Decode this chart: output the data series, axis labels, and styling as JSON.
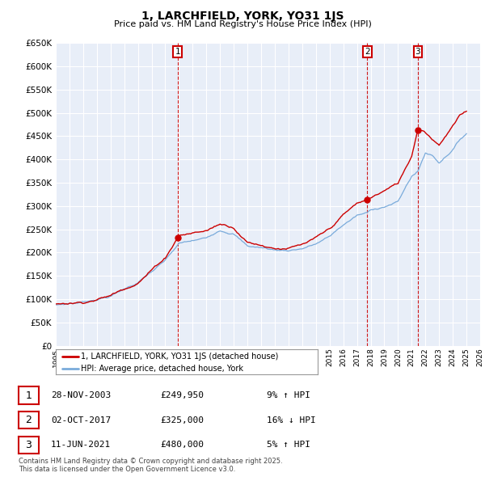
{
  "title": "1, LARCHFIELD, YORK, YO31 1JS",
  "subtitle": "Price paid vs. HM Land Registry's House Price Index (HPI)",
  "ytick_values": [
    0,
    50000,
    100000,
    150000,
    200000,
    250000,
    300000,
    350000,
    400000,
    450000,
    500000,
    550000,
    600000,
    650000
  ],
  "xmin": 1995,
  "xmax": 2026,
  "ymin": 0,
  "ymax": 650000,
  "sale_color": "#cc0000",
  "hpi_color": "#7aabdb",
  "sale_label": "1, LARCHFIELD, YORK, YO31 1JS (detached house)",
  "hpi_label": "HPI: Average price, detached house, York",
  "transactions": [
    {
      "num": 1,
      "date": "28-NOV-2003",
      "price": 249950,
      "pct": "9%",
      "dir": "↑",
      "year": 2003.9
    },
    {
      "num": 2,
      "date": "02-OCT-2017",
      "price": 325000,
      "pct": "16%",
      "dir": "↓",
      "year": 2017.75
    },
    {
      "num": 3,
      "date": "11-JUN-2021",
      "price": 480000,
      "pct": "5%",
      "dir": "↑",
      "year": 2021.45
    }
  ],
  "vline_color": "#cc0000",
  "footer": "Contains HM Land Registry data © Crown copyright and database right 2025.\nThis data is licensed under the Open Government Licence v3.0.",
  "background_color": "#e8eef8",
  "grid_color": "#ffffff"
}
